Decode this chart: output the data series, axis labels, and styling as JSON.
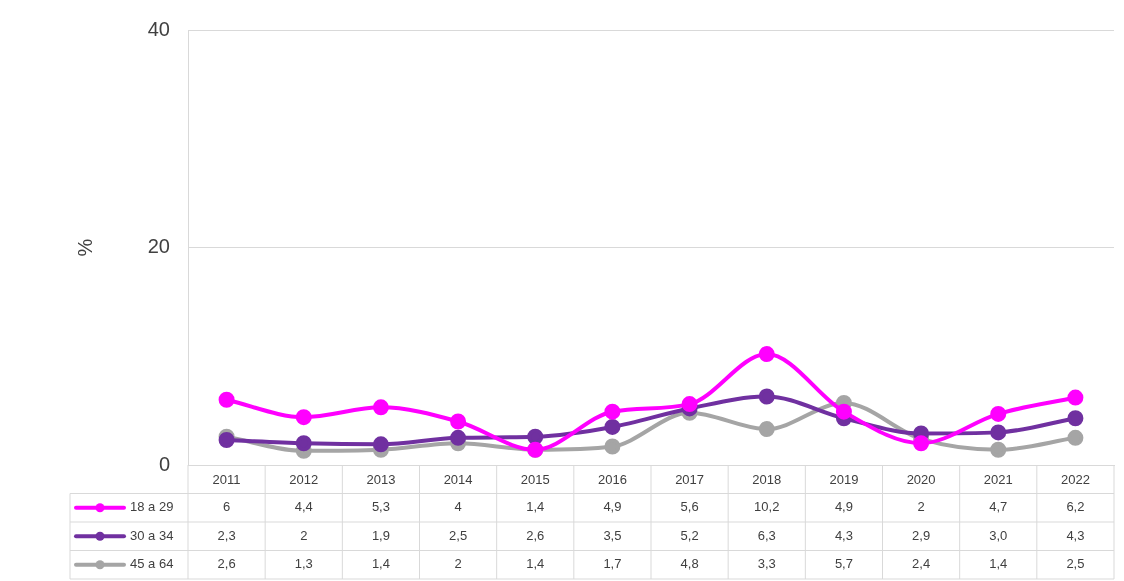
{
  "chart_data": {
    "type": "line",
    "ylabel": "%",
    "categories": [
      "2011",
      "2012",
      "2013",
      "2014",
      "2015",
      "2016",
      "2017",
      "2018",
      "2019",
      "2020",
      "2021",
      "2022"
    ],
    "series": [
      {
        "name": "18 a 29",
        "color": "#ff00ff",
        "values": [
          6,
          4.4,
          5.3,
          4,
          1.4,
          4.9,
          5.6,
          10.2,
          4.9,
          2,
          4.7,
          6.2
        ],
        "value_labels": [
          "6",
          "4,4",
          "5,3",
          "4",
          "1,4",
          "4,9",
          "5,6",
          "10,2",
          "4,9",
          "2",
          "4,7",
          "6,2"
        ]
      },
      {
        "name": "30 a 34",
        "color": "#7030a0",
        "values": [
          2.3,
          2,
          1.9,
          2.5,
          2.6,
          3.5,
          5.2,
          6.3,
          4.3,
          2.9,
          3.0,
          4.3
        ],
        "value_labels": [
          "2,3",
          "2",
          "1,9",
          "2,5",
          "2,6",
          "3,5",
          "5,2",
          "6,3",
          "4,3",
          "2,9",
          "3,0",
          "4,3"
        ]
      },
      {
        "name": "45 a 64",
        "color": "#a5a5a5",
        "values": [
          2.6,
          1.3,
          1.4,
          2,
          1.4,
          1.7,
          4.8,
          3.3,
          5.7,
          2.4,
          1.4,
          2.5
        ],
        "value_labels": [
          "2,6",
          "1,3",
          "1,4",
          "2",
          "1,4",
          "1,7",
          "4,8",
          "3,3",
          "5,7",
          "2,4",
          "1,4",
          "2,5"
        ]
      }
    ],
    "ylim": [
      0,
      40
    ],
    "yticks": [
      0,
      20,
      40
    ],
    "grid": "y",
    "legend": "bottom",
    "marker": "circle",
    "line_style": "solid"
  }
}
